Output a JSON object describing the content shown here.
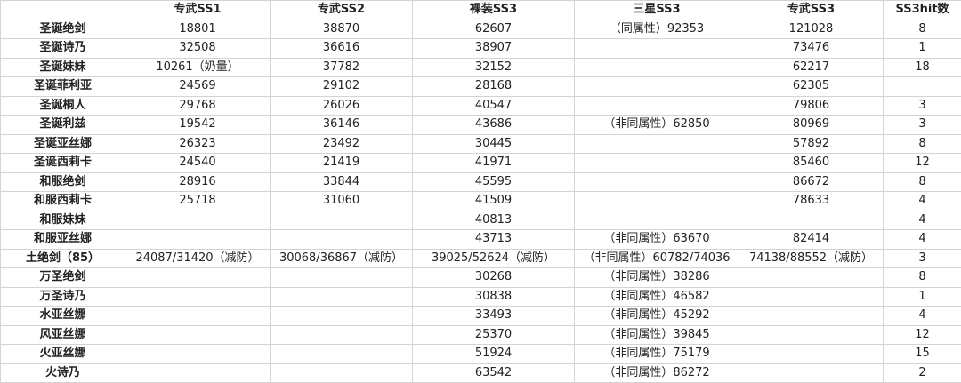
{
  "headers": [
    "",
    "专武SS1",
    "专武SS2",
    "裸装SS3",
    "三星SS3",
    "专武SS3",
    "SS3hit数"
  ],
  "rows": [
    [
      "圣诞绝剑",
      "18801",
      "38870",
      "62607",
      "（同属性）92353",
      "121028",
      "8"
    ],
    [
      "圣诞诗乃",
      "32508",
      "36616",
      "38907",
      "",
      "73476",
      "1"
    ],
    [
      "圣诞妹妹",
      "10261（奶量）",
      "37782",
      "32152",
      "",
      "62217",
      "18"
    ],
    [
      "圣诞菲利亚",
      "24569",
      "29102",
      "28168",
      "",
      "62305",
      ""
    ],
    [
      "圣诞桐人",
      "29768",
      "26026",
      "40547",
      "",
      "79806",
      "3"
    ],
    [
      "圣诞利兹",
      "19542",
      "36146",
      "43686",
      "（非同属性）62850",
      "80969",
      "3"
    ],
    [
      "圣诞亚丝娜",
      "26323",
      "23492",
      "30445",
      "",
      "57892",
      "8"
    ],
    [
      "圣诞西莉卡",
      "24540",
      "21419",
      "41971",
      "",
      "85460",
      "12"
    ],
    [
      "和服绝剑",
      "28916",
      "33844",
      "45595",
      "",
      "86672",
      "8"
    ],
    [
      "和服西莉卡",
      "25718",
      "31060",
      "41509",
      "",
      "78633",
      "4"
    ],
    [
      "和服妹妹",
      "",
      "",
      "40813",
      "",
      "",
      "4"
    ],
    [
      "和服亚丝娜",
      "",
      "",
      "43713",
      "（非同属性）63670",
      "82414",
      "4"
    ],
    [
      "土绝剑（85）",
      "24087/31420（减防）",
      "30068/36867（减防）",
      "39025/52624（减防）",
      "（非同属性）60782/74036",
      "74138/88552（减防）",
      "3"
    ],
    [
      "万圣绝剑",
      "",
      "",
      "30268",
      "（非同属性）38286",
      "",
      "8"
    ],
    [
      "万圣诗乃",
      "",
      "",
      "30838",
      "（非同属性）46582",
      "",
      "1"
    ],
    [
      "水亚丝娜",
      "",
      "",
      "33493",
      "（非同属性）45292",
      "",
      "4"
    ],
    [
      "风亚丝娜",
      "",
      "",
      "25370",
      "（非同属性）39845",
      "",
      "12"
    ],
    [
      "火亚丝娜",
      "",
      "",
      "51924",
      "（非同属性）75179",
      "",
      "15"
    ],
    [
      "火诗乃",
      "",
      "",
      "63542",
      "（非同属性）86272",
      "",
      "2"
    ]
  ]
}
